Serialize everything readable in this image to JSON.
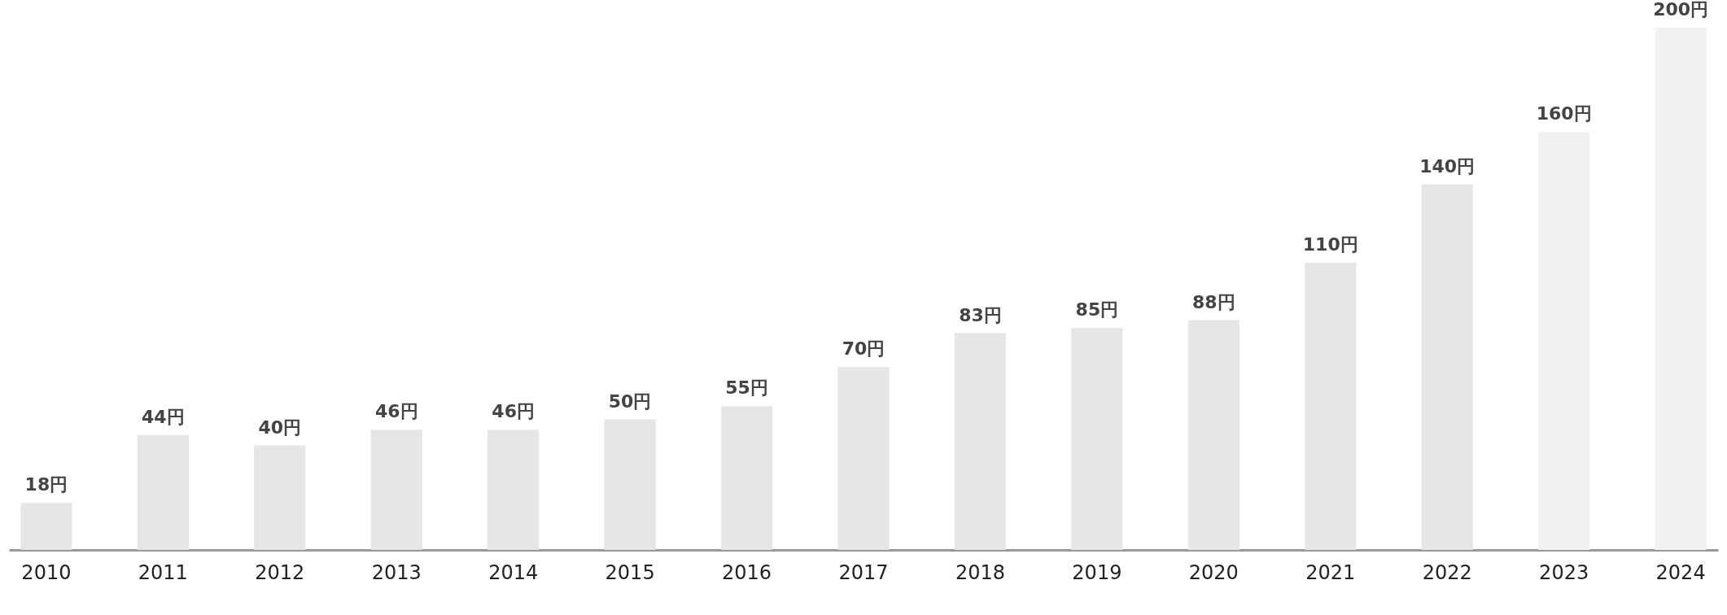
{
  "chart_data": {
    "type": "bar",
    "categories": [
      "2010",
      "2011",
      "2012",
      "2013",
      "2014",
      "2015",
      "2016",
      "2017",
      "2018",
      "2019",
      "2020",
      "2021",
      "2022",
      "2023",
      "2024"
    ],
    "values": [
      18,
      44,
      40,
      46,
      46,
      50,
      55,
      70,
      83,
      85,
      88,
      110,
      140,
      160,
      200
    ],
    "value_labels": [
      "18円",
      "44円",
      "40円",
      "46円",
      "46円",
      "50円",
      "55円",
      "70円",
      "83円",
      "85円",
      "88円",
      "110円",
      "140円",
      "160円",
      "200円"
    ],
    "colors": [
      "#e6e6e6",
      "#e6e6e6",
      "#e6e6e6",
      "#e6e6e6",
      "#e6e6e6",
      "#e6e6e6",
      "#e6e6e6",
      "#e6e6e6",
      "#e6e6e6",
      "#e6e6e6",
      "#e6e6e6",
      "#e6e6e6",
      "#e6e6e6",
      "#f1f1f1",
      "#f1f1f1"
    ]
  }
}
